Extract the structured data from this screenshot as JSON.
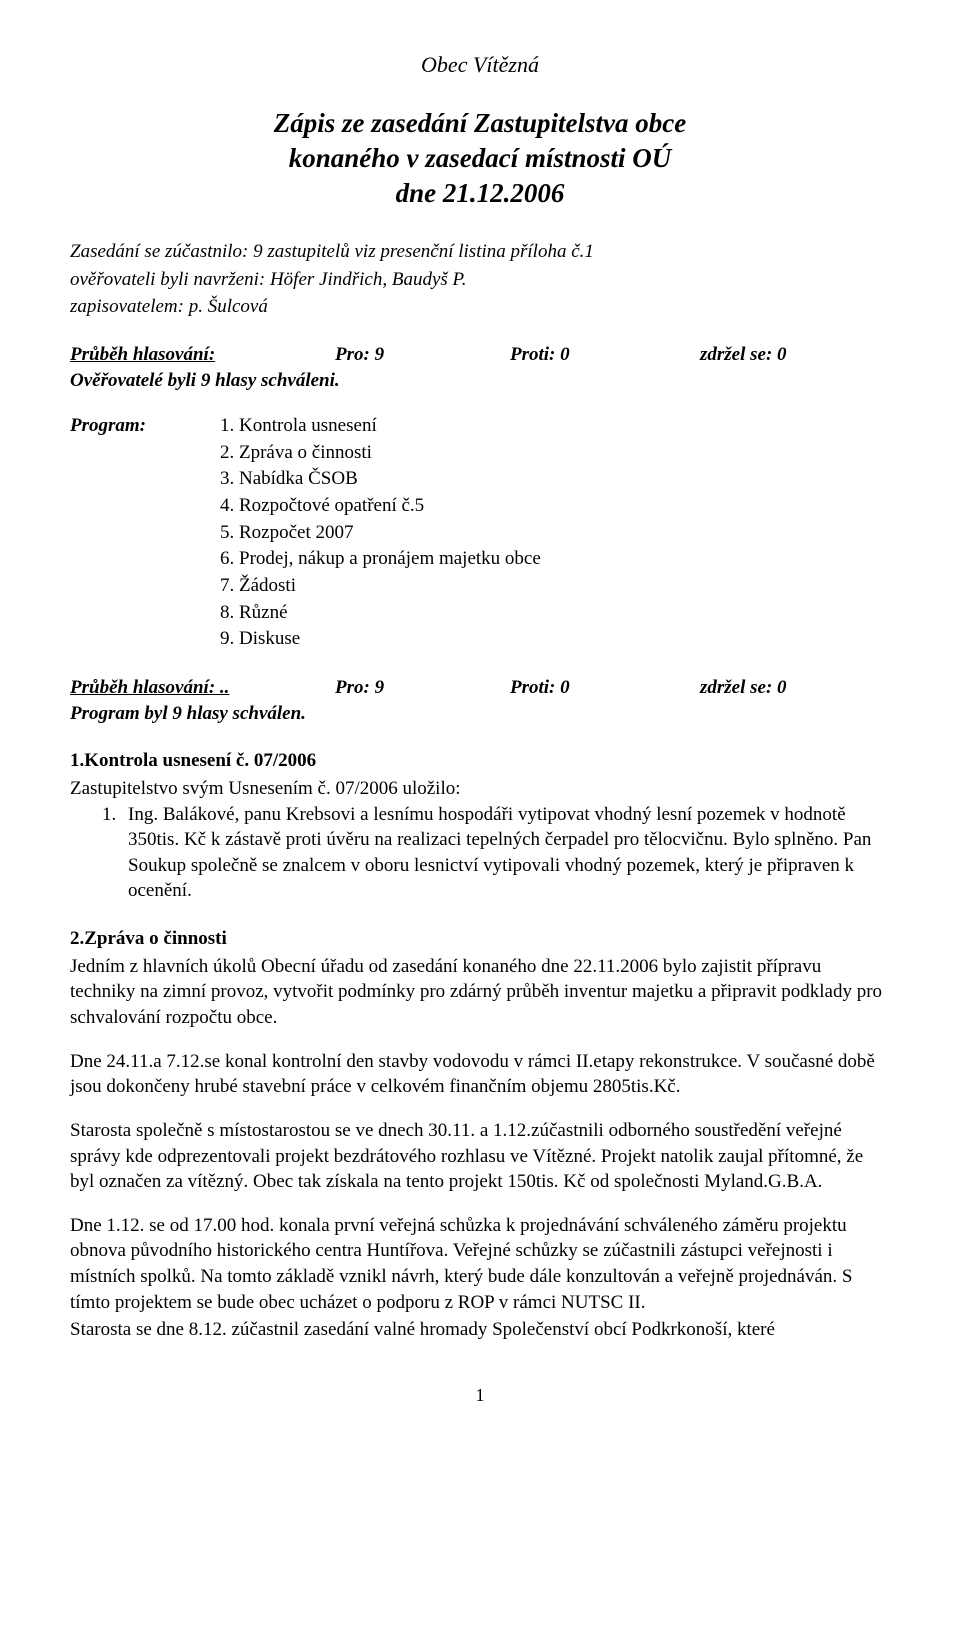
{
  "header": {
    "obec": "Obec Vítězná",
    "title_l1": "Zápis ze zasedání Zastupitelstva obce",
    "title_l2": "konaného v zasedací místnosti OÚ",
    "title_l3": "dne 21.12.2006"
  },
  "attendance": {
    "line1_label": "Zasedání se zúčastnilo:",
    "line1_value": "  9 zastupitelů viz presenční listina příloha č.1",
    "line2": "ověřovateli byli navrženi: Höfer Jindřich, Baudyš P.",
    "line3": "zapisovatelem: p. Šulcová"
  },
  "vote1": {
    "label": "Průběh hlasování:",
    "pro": "Pro: 9",
    "proti": "Proti: 0",
    "zdrzel": "zdržel se: 0",
    "result": "Ověřovatelé byli  9  hlasy schváleni."
  },
  "program": {
    "label": "Program:",
    "items": [
      "Kontrola usnesení",
      "Zpráva o činnosti",
      "Nabídka ČSOB",
      "Rozpočtové opatření č.5",
      "Rozpočet 2007",
      "Prodej, nákup a pronájem majetku obce",
      "Žádosti",
      "Různé",
      "Diskuse"
    ]
  },
  "vote2": {
    "label": "Průběh hlasování: ..",
    "pro": "Pro: 9",
    "proti": "Proti: 0",
    "zdrzel": "zdržel se: 0",
    "result": "Program byl  9 hlasy schválen."
  },
  "s1": {
    "title": "1.Kontrola usnesení č. 07/2006",
    "intro": "Zastupitelstvo svým Usnesením č. 07/2006 uložilo:",
    "item_num": "1.",
    "item_text": "Ing. Balákové, panu Krebsovi a lesnímu hospodáři vytipovat vhodný lesní pozemek v hodnotě 350tis. Kč k zástavě proti úvěru na realizaci tepelných čerpadel pro tělocvičnu. Bylo splněno. Pan Soukup společně se znalcem v oboru lesnictví vytipovali vhodný pozemek, který je připraven k ocenění."
  },
  "s2": {
    "title": "2.Zpráva o činnosti",
    "p1": "Jedním z hlavních úkolů Obecní úřadu od zasedání konaného dne 22.11.2006 bylo  zajistit  přípravu techniky na zimní provoz, vytvořit podmínky pro zdárný průběh inventur majetku a připravit podklady pro schvalování rozpočtu obce.",
    "p2": "Dne 24.11.a 7.12.se konal kontrolní den stavby vodovodu v rámci II.etapy rekonstrukce. V současné době jsou dokončeny hrubé stavební práce v celkovém finančním objemu 2805tis.Kč.",
    "p3": "Starosta společně s místostarostou se ve dnech 30.11. a 1.12.zúčastnili odborného soustředění veřejné správy kde odprezentovali projekt bezdrátového rozhlasu ve Vítězné. Projekt natolik zaujal přítomné, že byl označen za vítězný. Obec tak získala na tento projekt 150tis. Kč od společnosti Myland.G.B.A.",
    "p4": "Dne 1.12. se od 17.00 hod.  konala první veřejná schůzka  k projednávání schváleného  záměru projektu obnova původního historického centra Huntířova. Veřejné schůzky se zúčastnili zástupci veřejnosti i místních spolků. Na tomto základě vznikl návrh, který bude dále konzultován a veřejně projednáván. S tímto projektem se bude obec ucházet o podporu z ROP v rámci NUTSC II.",
    "p5": "Starosta se dne 8.12. zúčastnil zasedání valné hromady Společenství obcí Podkrkonoší, které"
  },
  "page_number": "1"
}
